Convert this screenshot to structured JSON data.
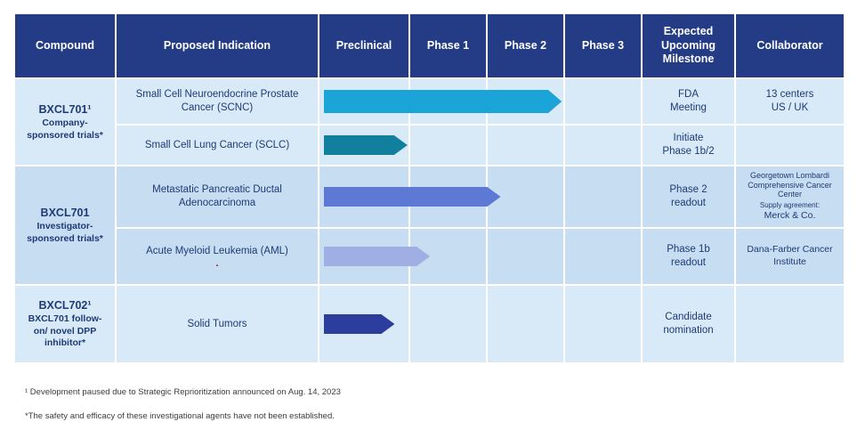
{
  "theme": {
    "header-bg": "#243c85",
    "row-light": "#d8eaf7",
    "row-mid": "#c7ddf1",
    "text-navy": "#1e3a78",
    "note-red": "#c00000"
  },
  "header": {
    "columns": [
      "Compound",
      "Proposed Indication",
      "Preclinical",
      "Phase 1",
      "Phase 2",
      "Phase 3",
      "Expected Upcoming Milestone",
      "Collaborator"
    ]
  },
  "groups": [
    {
      "name": "BXCL701¹",
      "sub": "Company-sponsored trials*"
    },
    {
      "name": "BXCL701",
      "sub": "Investigator-sponsored trials*"
    },
    {
      "name": "BXCL702¹",
      "sub": "BXCL701 follow-on/ novel DPP inhibitor*"
    }
  ],
  "rows": [
    {
      "indication": "Small Cell Neuroendocrine Prostate Cancer (SCNC)",
      "milestone": [
        "FDA",
        "Meeting"
      ],
      "collaborator": [
        "13 centers",
        "US / UK"
      ],
      "arrow": {
        "color": "#1ba4d8",
        "width_pct": 74
      }
    },
    {
      "indication": "Small Cell Lung Cancer (SCLC)",
      "milestone": [
        "Initiate",
        "Phase 1b/2"
      ],
      "arrow": {
        "color": "#11809f",
        "width_pct": 26
      }
    },
    {
      "indication": "Metastatic Pancreatic Ductal Adenocarcinoma",
      "milestone": [
        "Phase 2",
        "readout"
      ],
      "collaborator_main": "Georgetown Lombardi Comprehensive Cancer Center",
      "supply_label": "Supply agreement:",
      "supply_name": "Merck & Co.",
      "arrow": {
        "color": "#5d79d4",
        "width_pct": 55
      }
    },
    {
      "indication": "Acute Myeloid Leukemia (AML)",
      "red_mark": ".",
      "milestone": [
        "Phase 1b",
        "readout"
      ],
      "collaborator_main": "Dana-Farber Cancer Institute",
      "arrow": {
        "color": "#9fafe4",
        "width_pct": 33
      }
    },
    {
      "indication": "Solid Tumors",
      "milestone": [
        "Candidate",
        "nomination"
      ],
      "arrow": {
        "color": "#2c3d9d",
        "width_pct": 22
      }
    }
  ],
  "footnotes": [
    "¹ Development paused due to Strategic Reprioritization announced on Aug. 14, 2023",
    "*The safety and efficacy of these investigational agents have not been established."
  ]
}
